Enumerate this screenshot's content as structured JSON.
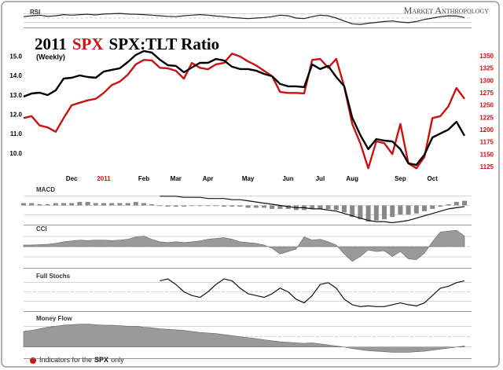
{
  "chart_data": [
    {
      "type": "line",
      "title_parts": [
        {
          "text": "2011",
          "color": "#000000"
        },
        {
          "text": "SPX",
          "color": "#cc1111"
        },
        {
          "text": "SPX:TLT Ratio",
          "color": "#000000"
        }
      ],
      "subtitle": "(Weekly)",
      "source": "Market Anthropology",
      "footnote_parts": [
        {
          "text": "Indicators for the",
          "bold": false
        },
        {
          "text": "SPX",
          "bold": true
        },
        {
          "text": "only",
          "bold": false
        }
      ],
      "categories": [
        null,
        null,
        null,
        null,
        null,
        null,
        "Dec",
        null,
        null,
        null,
        "2011",
        null,
        null,
        null,
        null,
        "Feb",
        null,
        null,
        null,
        "Mar",
        null,
        null,
        null,
        "Apr",
        null,
        null,
        null,
        null,
        "May",
        null,
        null,
        null,
        null,
        "Jun",
        null,
        null,
        null,
        "Jul",
        null,
        null,
        null,
        "Aug",
        null,
        null,
        null,
        null,
        null,
        "Sep",
        null,
        null,
        null,
        "Oct",
        null,
        null,
        null,
        null
      ],
      "ylim": [
        9.1,
        15.5
      ],
      "yticks": [
        {
          "value": 10,
          "label": "10.0"
        },
        {
          "value": 11,
          "label": "11.0"
        },
        {
          "value": 12,
          "label": "12.0"
        },
        {
          "value": 13,
          "label": "13.0"
        },
        {
          "value": 14,
          "label": "14.0"
        },
        {
          "value": 15,
          "label": "15.0"
        }
      ],
      "y2lim": [
        1117,
        1369
      ],
      "y2ticks": [
        1125,
        1150,
        1175,
        1200,
        1225,
        1250,
        1275,
        1300,
        1325,
        1350
      ],
      "y2tick_color": "#cc1111",
      "series": [
        {
          "color": "#cc1111",
          "axis": "y2",
          "values": [
            1225,
            1229,
            1210,
            1206,
            1197,
            1225,
            1251,
            1256,
            1261,
            1264,
            1276,
            1292,
            1299,
            1313,
            1334,
            1343,
            1342,
            1327,
            1326,
            1321,
            1305,
            1337,
            1327,
            1324,
            1334,
            1337,
            1356,
            1350,
            1340,
            1332,
            1321,
            1310,
            1278,
            1276,
            1276,
            1275,
            1343,
            1345,
            1327,
            1345,
            1289,
            1213,
            1174,
            1123,
            1178,
            1174,
            1152,
            1213,
            1133,
            1123,
            1146,
            1225,
            1229,
            1249,
            1286,
            1264
          ]
        },
        {
          "color": "#000000",
          "axis": "y",
          "values": [
            12.95,
            13.11,
            13.15,
            13.03,
            13.27,
            13.88,
            13.92,
            14.04,
            13.96,
            13.92,
            14.24,
            14.33,
            14.41,
            14.73,
            15.1,
            15.3,
            15.22,
            14.85,
            14.57,
            14.53,
            14.2,
            14.45,
            14.69,
            14.69,
            14.89,
            14.81,
            14.49,
            14.37,
            14.37,
            14.29,
            14.12,
            14.0,
            13.6,
            13.48,
            13.48,
            13.44,
            14.61,
            14.37,
            14.53,
            13.96,
            13.48,
            11.86,
            10.97,
            10.24,
            10.76,
            10.68,
            10.64,
            10.24,
            9.51,
            9.43,
            9.95,
            10.84,
            11.05,
            11.25,
            11.65,
            10.93
          ]
        }
      ]
    },
    {
      "type": "line",
      "title": "RSI",
      "ylim": [
        20,
        80
      ],
      "series": [
        {
          "color": "#222222",
          "values": [
            55,
            58,
            60,
            56,
            58,
            62,
            60,
            62,
            63,
            61,
            64,
            65,
            66,
            64,
            63,
            62,
            60,
            58,
            56,
            55,
            58,
            60,
            62,
            60,
            57,
            55,
            52,
            50,
            48,
            50,
            52,
            55,
            60,
            58,
            50,
            48,
            55,
            60,
            58,
            50,
            40,
            30,
            28,
            32,
            35,
            38,
            40,
            36,
            34,
            38,
            45,
            50,
            55,
            58,
            57,
            52
          ]
        }
      ]
    },
    {
      "type": "combo",
      "title": "MACD",
      "ylim": [
        -16,
        16
      ],
      "series": [
        {
          "type": "bar",
          "color": "#888888",
          "values": [
            2,
            2,
            1,
            1,
            2,
            2,
            2,
            3,
            3,
            2,
            2,
            2,
            2,
            2,
            3,
            2,
            1,
            0,
            -1,
            -1,
            -1,
            0,
            0,
            0,
            0,
            -1,
            -1,
            -1,
            -2,
            -2,
            -2,
            -3,
            -3,
            -3,
            -4,
            -4,
            -3,
            -3,
            -3,
            -4,
            -6,
            -10,
            -12,
            -14,
            -13,
            -12,
            -10,
            -8,
            -8,
            -7,
            -5,
            -3,
            -1,
            1,
            3,
            4
          ]
        },
        {
          "type": "line",
          "color": "#111111",
          "values": [
            null,
            null,
            null,
            null,
            null,
            null,
            null,
            null,
            null,
            null,
            null,
            null,
            null,
            null,
            null,
            null,
            null,
            8,
            8,
            8,
            7,
            7,
            7,
            6,
            6,
            6,
            5,
            5,
            4,
            3,
            2,
            1,
            0,
            -1,
            -2,
            -2,
            -3,
            -3,
            -4,
            -5,
            -7,
            -9,
            -11,
            -13,
            -14,
            -14,
            -15,
            -14,
            -13,
            -11,
            -9,
            -7,
            -5,
            -3,
            -2,
            -1
          ]
        }
      ]
    },
    {
      "type": "area",
      "title": "CCI",
      "ylim": [
        -250,
        250
      ],
      "series": [
        {
          "color": "#9a9a9a",
          "values": [
            20,
            20,
            25,
            30,
            40,
            60,
            70,
            80,
            75,
            80,
            80,
            75,
            80,
            90,
            120,
            130,
            90,
            60,
            50,
            60,
            50,
            60,
            70,
            90,
            100,
            110,
            90,
            60,
            50,
            40,
            20,
            -20,
            -90,
            -60,
            -30,
            120,
            80,
            90,
            60,
            20,
            -90,
            -180,
            -120,
            -40,
            -60,
            -50,
            -120,
            -60,
            -150,
            -160,
            -80,
            60,
            180,
            190,
            200,
            130
          ]
        }
      ]
    },
    {
      "type": "line",
      "title": "Full Stochs",
      "ylim": [
        0,
        100
      ],
      "series": [
        {
          "color": "#111111",
          "values": [
            null,
            null,
            null,
            null,
            null,
            null,
            null,
            null,
            null,
            null,
            null,
            null,
            null,
            null,
            null,
            null,
            null,
            80,
            85,
            70,
            50,
            40,
            35,
            50,
            70,
            85,
            80,
            60,
            45,
            40,
            35,
            45,
            60,
            50,
            30,
            20,
            40,
            70,
            75,
            60,
            30,
            15,
            10,
            12,
            10,
            10,
            15,
            20,
            15,
            12,
            20,
            40,
            60,
            65,
            75,
            80
          ]
        }
      ]
    },
    {
      "type": "area",
      "title": "Money Flow",
      "ylim": [
        -20,
        60
      ],
      "series": [
        {
          "color": "#9a9a9a",
          "values": [
            30,
            32,
            35,
            38,
            40,
            42,
            43,
            44,
            44,
            43,
            42,
            42,
            41,
            40,
            40,
            38,
            37,
            35,
            34,
            33,
            32,
            30,
            28,
            27,
            26,
            24,
            22,
            20,
            18,
            16,
            14,
            12,
            10,
            9,
            8,
            7,
            8,
            6,
            4,
            2,
            0,
            -3,
            -5,
            -7,
            -8,
            -9,
            -10,
            -10,
            -10,
            -9,
            -8,
            -6,
            -4,
            -2,
            0,
            2
          ]
        }
      ]
    }
  ]
}
